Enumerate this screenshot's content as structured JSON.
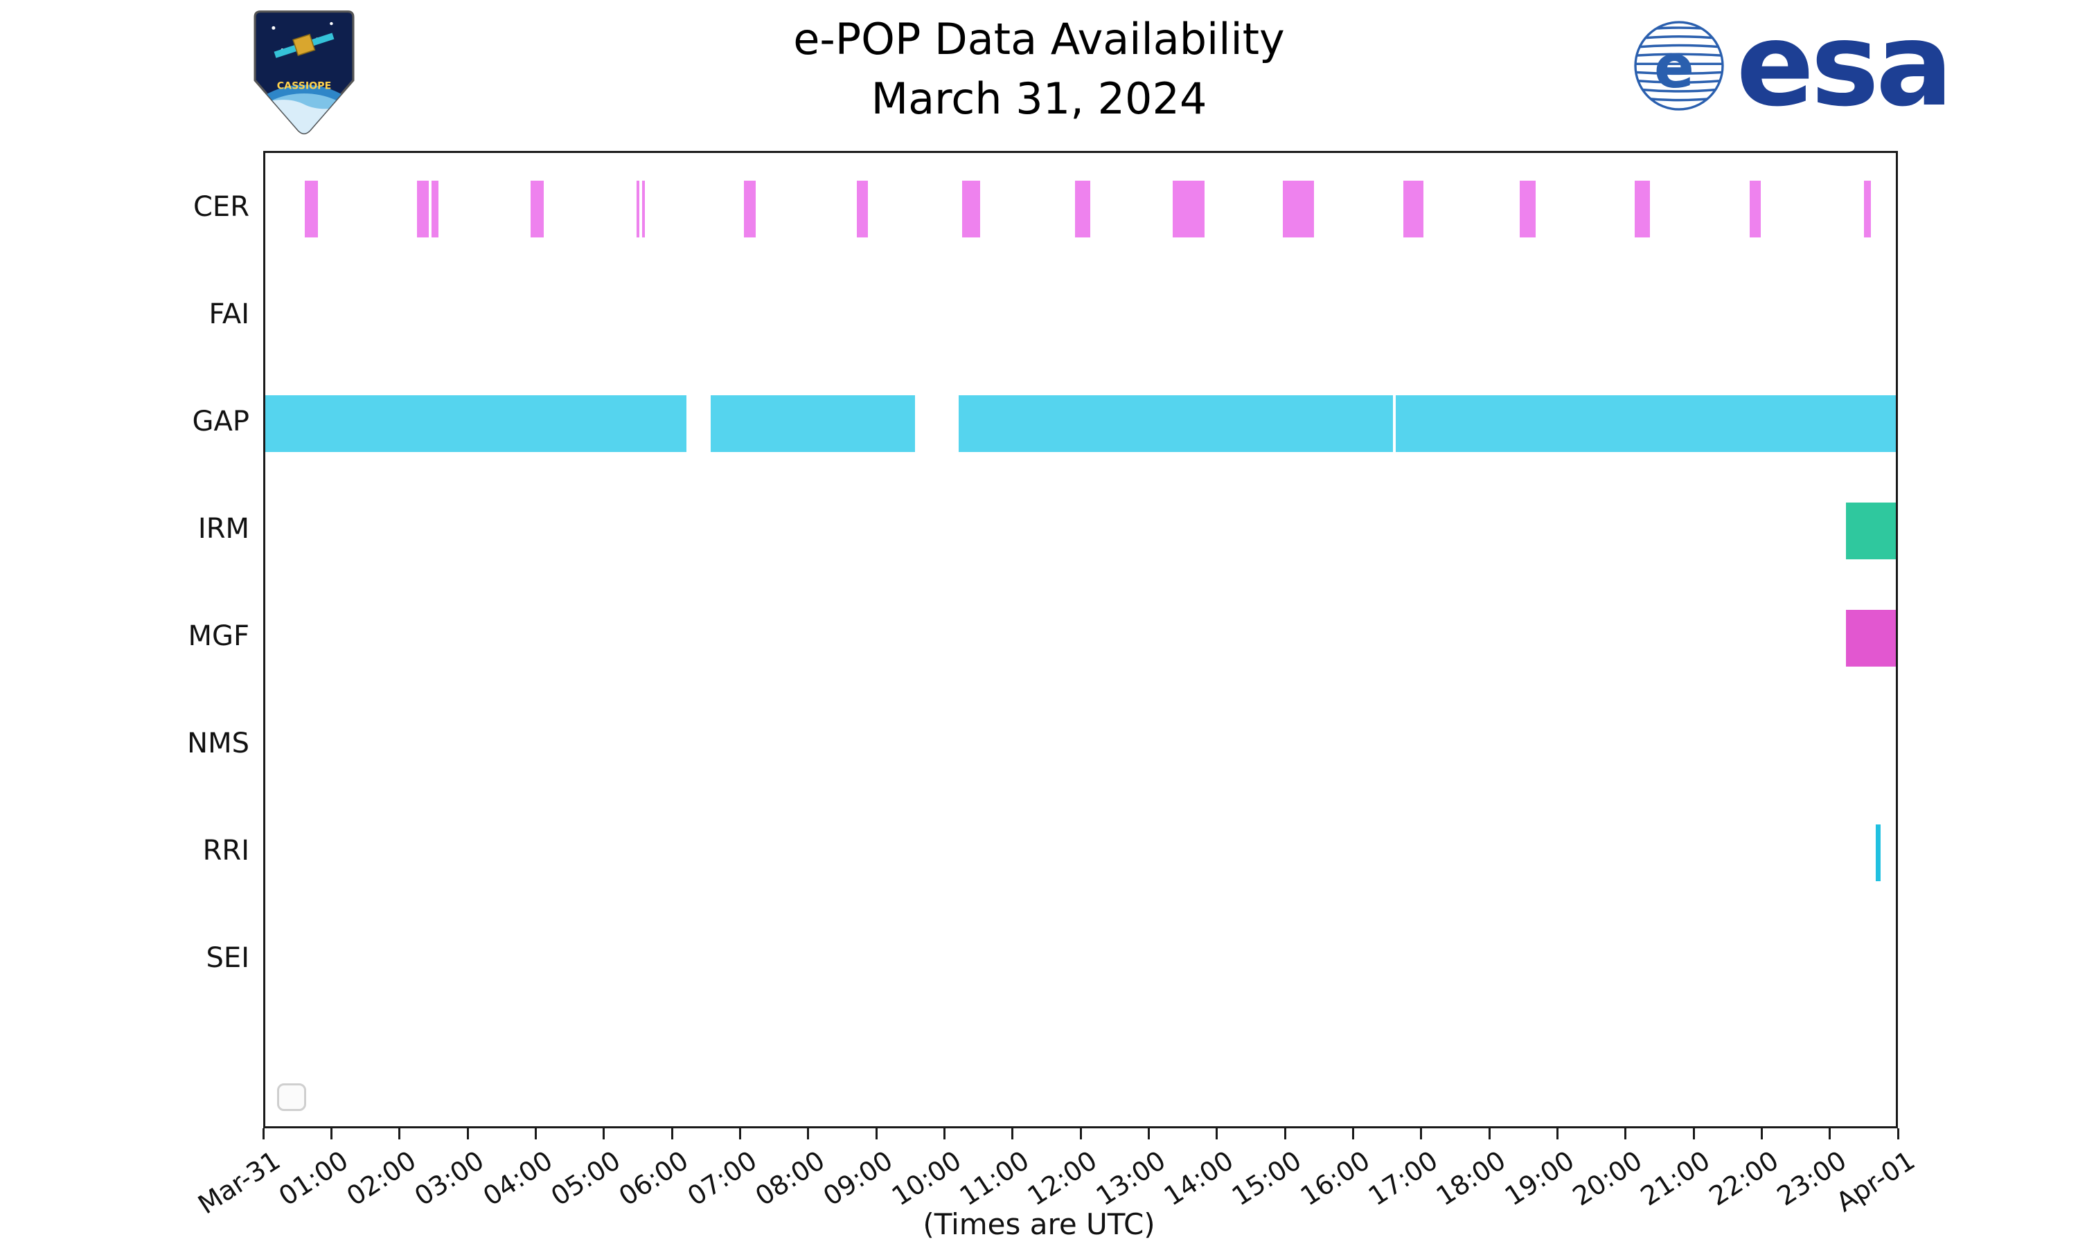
{
  "header": {
    "title": "e-POP Data Availability",
    "subtitle": "March 31, 2024",
    "cassiope_patch_text": "CASSIOPE",
    "esa_wordmark": "esa"
  },
  "axis": {
    "xlabel": "(Times are UTC)"
  },
  "colors": {
    "cer": "#ee82ee",
    "gap": "#55d4ee",
    "irm": "#2fc89e",
    "mgf": "#e257d0",
    "rri": "#21c0e0",
    "esa_blue": "#1d3f94",
    "axis_black": "#1a1a1a"
  },
  "chart_data": {
    "type": "timeline",
    "title": "e-POP Data Availability",
    "subtitle": "March 31, 2024",
    "xlabel": "(Times are UTC)",
    "x_axis": {
      "unit": "hours UTC on 2024-03-31",
      "min": 0,
      "max": 24,
      "tick_hours": [
        0,
        1,
        2,
        3,
        4,
        5,
        6,
        7,
        8,
        9,
        10,
        11,
        12,
        13,
        14,
        15,
        16,
        17,
        18,
        19,
        20,
        21,
        22,
        23,
        24
      ],
      "tick_labels": [
        "Mar-31",
        "01:00",
        "02:00",
        "03:00",
        "04:00",
        "05:00",
        "06:00",
        "07:00",
        "08:00",
        "09:00",
        "10:00",
        "11:00",
        "12:00",
        "13:00",
        "14:00",
        "15:00",
        "16:00",
        "17:00",
        "18:00",
        "19:00",
        "20:00",
        "21:00",
        "22:00",
        "23:00",
        "Apr-01"
      ]
    },
    "legend": {
      "visible": true,
      "entries": []
    },
    "rows": [
      {
        "label": "CER",
        "color": "#ee82ee",
        "intervals": [
          [
            0.58,
            0.78
          ],
          [
            2.23,
            2.41
          ],
          [
            2.45,
            2.55
          ],
          [
            3.9,
            4.1
          ],
          [
            5.46,
            5.51
          ],
          [
            5.55,
            5.59
          ],
          [
            7.04,
            7.22
          ],
          [
            8.71,
            8.87
          ],
          [
            10.26,
            10.52
          ],
          [
            11.92,
            12.14
          ],
          [
            13.36,
            13.82
          ],
          [
            14.98,
            15.44
          ],
          [
            16.75,
            17.05
          ],
          [
            18.46,
            18.7
          ],
          [
            20.16,
            20.38
          ],
          [
            21.85,
            22.01
          ],
          [
            23.53,
            23.63
          ]
        ]
      },
      {
        "label": "FAI",
        "color": null,
        "intervals": []
      },
      {
        "label": "GAP",
        "color": "#55d4ee",
        "intervals": [
          [
            0.0,
            6.2
          ],
          [
            6.56,
            9.56
          ],
          [
            10.21,
            16.6
          ],
          [
            16.64,
            24.0
          ]
        ]
      },
      {
        "label": "IRM",
        "color": "#2fc89e",
        "intervals": [
          [
            23.27,
            24.0
          ]
        ]
      },
      {
        "label": "MGF",
        "color": "#e257d0",
        "intervals": [
          [
            23.27,
            24.0
          ]
        ]
      },
      {
        "label": "NMS",
        "color": null,
        "intervals": []
      },
      {
        "label": "RRI",
        "color": "#21c0e0",
        "intervals": [
          [
            23.7,
            23.78
          ]
        ]
      },
      {
        "label": "SEI",
        "color": null,
        "intervals": []
      }
    ]
  }
}
